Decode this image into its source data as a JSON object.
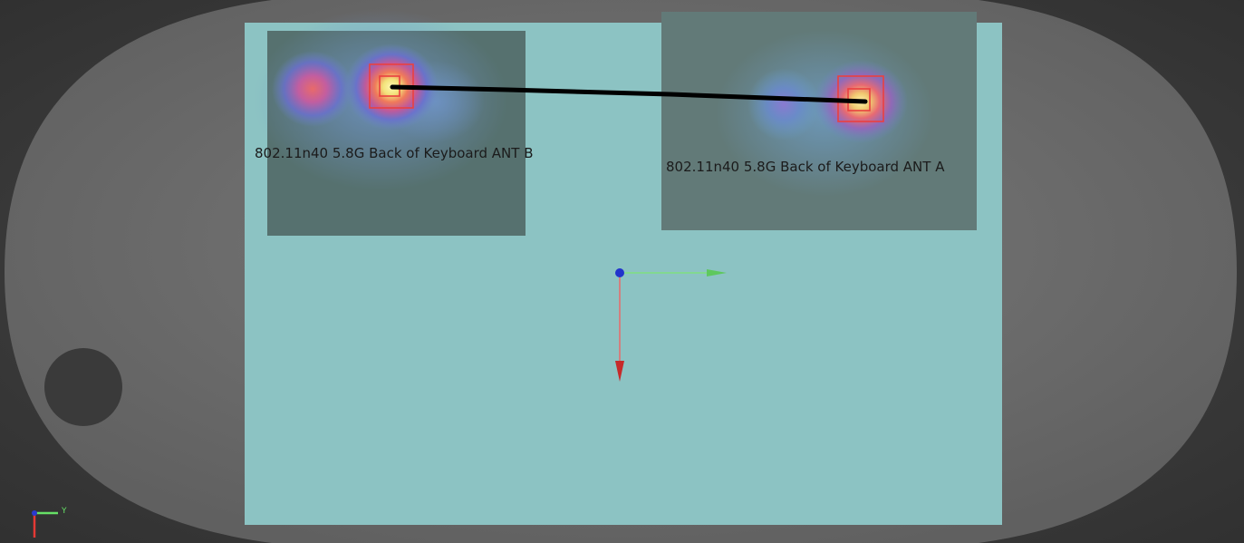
{
  "scene": {
    "antenna_b": {
      "label": "802.11n40 5.8G Back of Keyboard ANT B"
    },
    "antenna_a": {
      "label": "802.11n40 5.8G Back of Keyboard ANT A"
    },
    "axis_gizmo": {
      "y_label": "Y"
    },
    "colors": {
      "background": "#3b3b3b",
      "device_shell": "#6e6e6e",
      "board": "#8cc3c3",
      "scan_region": "#5a6e6e",
      "connector_line": "#000000",
      "marker": "#e53935",
      "axis_x": "#e53935",
      "axis_y": "#66e066",
      "origin": "#2233cc"
    }
  }
}
